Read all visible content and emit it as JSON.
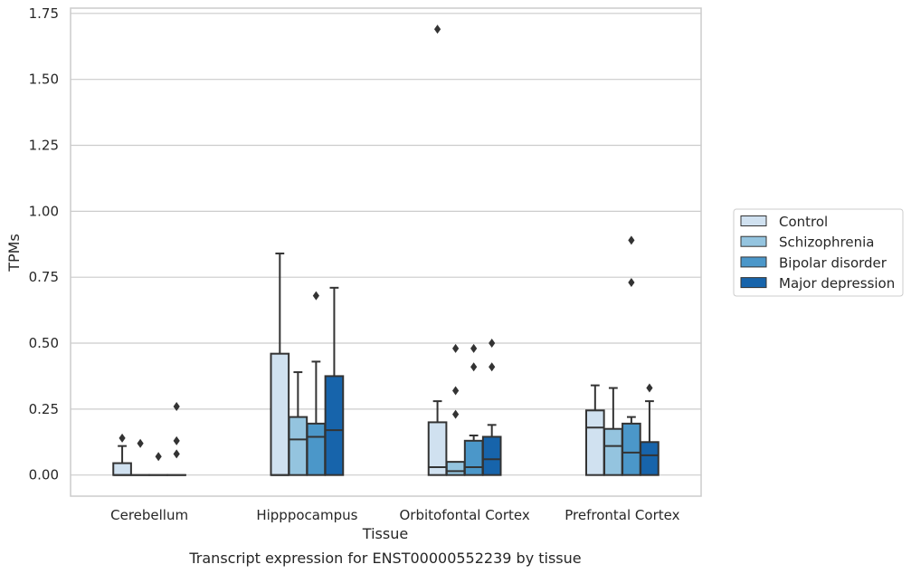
{
  "chart_data": {
    "type": "box",
    "title": "",
    "caption": "Transcript expression for ENST00000552239 by tissue",
    "xlabel": "Tissue",
    "ylabel": "TPMs",
    "ylim": [
      -0.08,
      1.77
    ],
    "yticks": [
      0.0,
      0.25,
      0.5,
      0.75,
      1.0,
      1.25,
      1.5,
      1.75
    ],
    "ytick_labels": [
      "0.00",
      "0.25",
      "0.50",
      "0.75",
      "1.00",
      "1.25",
      "1.50",
      "1.75"
    ],
    "grid": true,
    "legend_position": "right",
    "categories": [
      "Cerebellum",
      "Hipppocampus",
      "Orbitofontal Cortex",
      "Prefrontal Cortex"
    ],
    "colors": {
      "Control": "#d0e1f0",
      "Schizophrenia": "#94c4df",
      "Bipolar disorder": "#4b97c9",
      "Major depression": "#1764ab",
      "edge": "#333333",
      "grid": "#cccccc"
    },
    "series": [
      {
        "name": "Control",
        "boxes": [
          {
            "q1": 0.0,
            "median": 0.0,
            "q3": 0.045,
            "whislo": 0.0,
            "whishi": 0.11,
            "fliers": [
              0.14
            ]
          },
          {
            "q1": 0.0,
            "median": 0.0,
            "q3": 0.46,
            "whislo": 0.0,
            "whishi": 0.84,
            "fliers": []
          },
          {
            "q1": 0.0,
            "median": 0.03,
            "q3": 0.2,
            "whislo": 0.0,
            "whishi": 0.28,
            "fliers": [
              1.69
            ]
          },
          {
            "q1": 0.0,
            "median": 0.18,
            "q3": 0.245,
            "whislo": 0.0,
            "whishi": 0.34,
            "fliers": []
          }
        ]
      },
      {
        "name": "Schizophrenia",
        "boxes": [
          {
            "q1": 0.0,
            "median": 0.0,
            "q3": 0.0,
            "whislo": 0.0,
            "whishi": 0.0,
            "fliers": [
              0.12
            ]
          },
          {
            "q1": 0.0,
            "median": 0.135,
            "q3": 0.22,
            "whislo": 0.0,
            "whishi": 0.39,
            "fliers": []
          },
          {
            "q1": 0.0,
            "median": 0.015,
            "q3": 0.05,
            "whislo": 0.0,
            "whishi": 0.05,
            "fliers": [
              0.23,
              0.32,
              0.48
            ]
          },
          {
            "q1": 0.0,
            "median": 0.11,
            "q3": 0.175,
            "whislo": 0.0,
            "whishi": 0.33,
            "fliers": []
          }
        ]
      },
      {
        "name": "Bipolar disorder",
        "boxes": [
          {
            "q1": 0.0,
            "median": 0.0,
            "q3": 0.0,
            "whislo": 0.0,
            "whishi": 0.0,
            "fliers": [
              0.07
            ]
          },
          {
            "q1": 0.0,
            "median": 0.145,
            "q3": 0.195,
            "whislo": 0.0,
            "whishi": 0.43,
            "fliers": [
              0.68
            ]
          },
          {
            "q1": 0.0,
            "median": 0.03,
            "q3": 0.13,
            "whislo": 0.0,
            "whishi": 0.15,
            "fliers": [
              0.41,
              0.48
            ]
          },
          {
            "q1": 0.0,
            "median": 0.085,
            "q3": 0.195,
            "whislo": 0.0,
            "whishi": 0.22,
            "fliers": [
              0.73,
              0.89
            ]
          }
        ]
      },
      {
        "name": "Major depression",
        "boxes": [
          {
            "q1": 0.0,
            "median": 0.0,
            "q3": 0.0,
            "whislo": 0.0,
            "whishi": 0.0,
            "fliers": [
              0.08,
              0.13,
              0.26
            ]
          },
          {
            "q1": 0.0,
            "median": 0.17,
            "q3": 0.375,
            "whislo": 0.0,
            "whishi": 0.71,
            "fliers": []
          },
          {
            "q1": 0.0,
            "median": 0.06,
            "q3": 0.145,
            "whislo": 0.0,
            "whishi": 0.19,
            "fliers": [
              0.41,
              0.5
            ]
          },
          {
            "q1": 0.0,
            "median": 0.075,
            "q3": 0.125,
            "whislo": 0.0,
            "whishi": 0.28,
            "fliers": [
              0.33
            ]
          }
        ]
      }
    ]
  }
}
